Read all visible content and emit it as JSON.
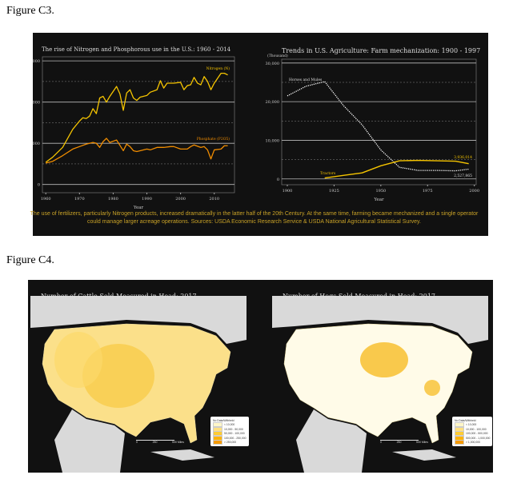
{
  "figures": {
    "c3_label": "Figure C3.",
    "c4_label": "Figure C4."
  },
  "caption": "The use of fertilizers, particularly Nitrogen products, increased dramatically in the latter half of the 20th Century.  At the same time, farming became mechanized and a single operator could manage larger acreage operations.  Sources: USDA Economic Research Service & USDA National Agricultural Statistical Survey.",
  "colors": {
    "nitrogen": "#f5c400",
    "phosphate": "#f08c00",
    "horses": "#ffffff",
    "tractors": "#f5c400",
    "caption": "#c9a227"
  },
  "chart_data": [
    {
      "type": "line",
      "title": "The rise of Nitrogen and Phosphorous use in the U.S.: 1960 - 2014",
      "xlabel": "Year",
      "ylabel": "",
      "xlim": [
        1959,
        2016
      ],
      "ylim": [
        -1000,
        15500
      ],
      "xticks": [
        "1960",
        "1970",
        "1980",
        "1990",
        "2000",
        "2010"
      ],
      "yticks": [
        "0",
        "5,000",
        "10,000",
        "15,000"
      ],
      "series": [
        {
          "name": "Nitrogen (N)",
          "x": [
            1960,
            1962,
            1965,
            1968,
            1970,
            1971,
            1972,
            1973,
            1974,
            1975,
            1976,
            1977,
            1978,
            1979,
            1981,
            1982,
            1983,
            1984,
            1985,
            1986,
            1987,
            1988,
            1990,
            1991,
            1993,
            1994,
            1995,
            1996,
            1998,
            2000,
            2001,
            2002,
            2003,
            2004,
            2005,
            2006,
            2007,
            2008,
            2009,
            2010,
            2012,
            2013,
            2014
          ],
          "values": [
            2700,
            3300,
            4500,
            6700,
            7700,
            8100,
            8000,
            8300,
            9200,
            8600,
            10500,
            10700,
            10000,
            10700,
            11900,
            11000,
            9000,
            11100,
            11500,
            10500,
            10200,
            10600,
            10800,
            11200,
            11500,
            12600,
            11700,
            12300,
            12300,
            12400,
            11500,
            12000,
            12100,
            13000,
            12300,
            12100,
            13100,
            12500,
            11500,
            12300,
            13500,
            13500,
            13300
          ]
        },
        {
          "name": "Phosphate (P2O5)",
          "x": [
            1960,
            1962,
            1965,
            1968,
            1970,
            1972,
            1974,
            1975,
            1976,
            1977,
            1978,
            1979,
            1981,
            1983,
            1984,
            1985,
            1986,
            1987,
            1988,
            1990,
            1991,
            1993,
            1995,
            1997,
            1998,
            2000,
            2002,
            2003,
            2004,
            2006,
            2007,
            2008,
            2009,
            2010,
            2012,
            2013,
            2014
          ],
          "values": [
            2600,
            2800,
            3500,
            4300,
            4600,
            4900,
            5100,
            5000,
            4500,
            5200,
            5600,
            5100,
            5400,
            4100,
            4900,
            4600,
            4100,
            4000,
            4100,
            4300,
            4200,
            4500,
            4500,
            4600,
            4600,
            4300,
            4300,
            4600,
            4800,
            4500,
            4600,
            4200,
            3100,
            4200,
            4300,
            4700,
            4700
          ]
        }
      ]
    },
    {
      "type": "line",
      "title": "Trends in U.S. Agriculture: Farm mechanization: 1900 - 1997",
      "xlabel": "Year",
      "ylabel": "(Thousand)",
      "xlim": [
        1897,
        2001
      ],
      "ylim": [
        -1500,
        31000
      ],
      "xticks": [
        "1900",
        "1925",
        "1950",
        "1975",
        "2000"
      ],
      "yticks": [
        "0",
        "10,000",
        "20,000",
        "30,000"
      ],
      "series": [
        {
          "name": "Horses and Mules",
          "x": [
            1900,
            1910,
            1920,
            1930,
            1940,
            1950,
            1960,
            1970,
            1980,
            1990,
            1997
          ],
          "values": [
            21500,
            24000,
            25200,
            19000,
            14000,
            7500,
            3000,
            2200,
            2200,
            2100,
            2528
          ]
        },
        {
          "name": "Tractors",
          "x": [
            1920,
            1930,
            1940,
            1950,
            1960,
            1970,
            1980,
            1990,
            1997
          ],
          "values": [
            250,
            920,
            1570,
            3400,
            4700,
            4800,
            4700,
            4600,
            3936
          ]
        }
      ],
      "annotations": [
        "3,936,014",
        "2,527,865"
      ]
    }
  ],
  "maps": [
    {
      "title": "Number of Cattle Sold Measured in Head: 2017",
      "legend": [
        "No Data/Withheld",
        "< 10,000",
        "10,000 - 50,000",
        "50,000 - 100,000",
        "100,000 - 250,000",
        "> 250,000"
      ],
      "colors": [
        "#ffffff",
        "#fff6c8",
        "#ffe080",
        "#ffcc33",
        "#ffb300",
        "#f59a00"
      ],
      "scale": [
        "0",
        "250",
        "500 Miles"
      ]
    },
    {
      "title": "Number of Hogs Sold Measured in Head: 2017",
      "legend": [
        "No Data/Withheld",
        "< 10,000",
        "10,000 - 100,000",
        "100,000 - 500,000",
        "500,000 - 1,000,000",
        "> 1,000,000"
      ],
      "colors": [
        "#ffffff",
        "#fff6c8",
        "#ffe080",
        "#ffcc33",
        "#ffb300",
        "#f59a00"
      ],
      "scale": [
        "0",
        "250",
        "500 Miles"
      ]
    }
  ]
}
